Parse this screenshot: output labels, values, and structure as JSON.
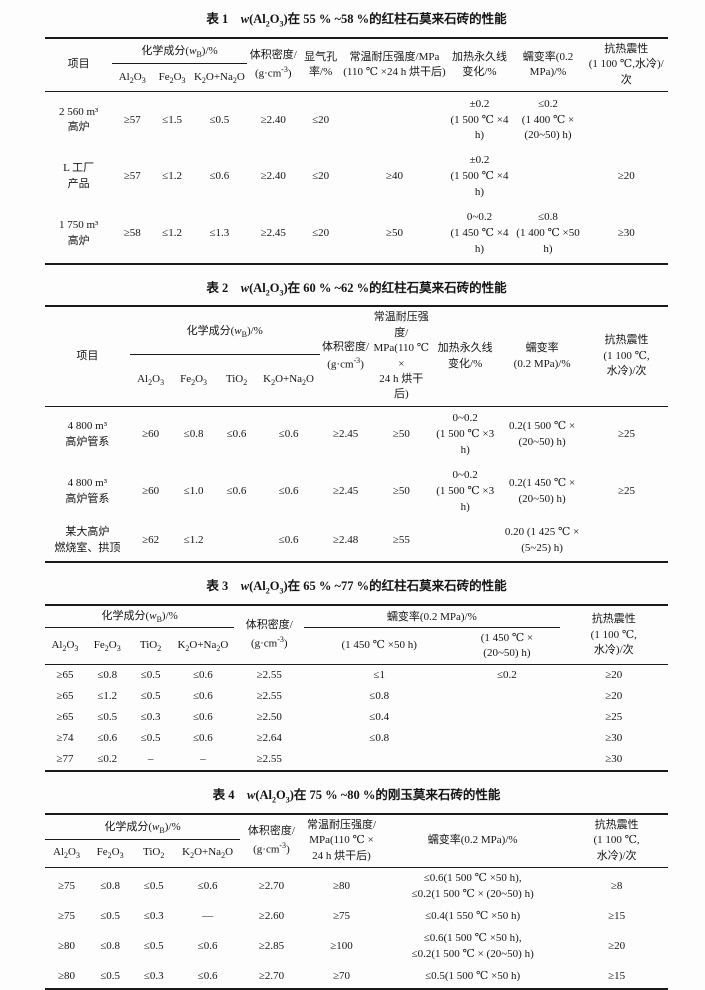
{
  "tables": {
    "t1": {
      "caption": "表 1　<i>w</i>(Al<sub>2</sub>O<sub>3</sub>)在 55 % ~58 %的红柱石莫来石砖的性能",
      "headers": {
        "item": "项目",
        "chem_group": "化学成分(<i>w</i><sub>B</sub>)/%",
        "al2o3": "Al<sub>2</sub>O<sub>3</sub>",
        "fe2o3": "Fe<sub>2</sub>O<sub>3</sub>",
        "k2o_na2o": "K<sub>2</sub>O+Na<sub>2</sub>O",
        "density": "体积密度/<br>(g·cm<sup>-3</sup>)",
        "porosity": "显气孔<br>率/%",
        "ccs": "常温耐压强度/MPa<br>(110 ℃ ×24 h 烘干后)",
        "plc": "加热永久线<br>变化/%",
        "creep": "蠕变率(0.2 MPa)/%",
        "tsr": "抗热震性<br>(1 100 ℃,水冷)/次"
      },
      "rows": [
        [
          "2 560 m³\n高炉",
          "≥57",
          "≤1.5",
          "≤0.5",
          "≥2.40",
          "≤20",
          "",
          "±0.2\n(1 500 ℃ ×4 h)",
          "≤0.2\n(1 400 ℃ ×\n(20~50) h)",
          ""
        ],
        [
          "L 工厂\n产品",
          "≥57",
          "≤1.2",
          "≤0.6",
          "≥2.40",
          "≤20",
          "≥40",
          "±0.2\n(1 500 ℃ ×4 h)",
          "",
          "≥20"
        ],
        [
          "1 750 m³\n高炉",
          "≥58",
          "≤1.2",
          "≤1.3",
          "≥2.45",
          "≤20",
          "≥50",
          "0~0.2\n(1 450 ℃ ×4 h)",
          "≤0.8\n(1 400 ℃ ×50 h)",
          "≥30"
        ]
      ]
    },
    "t2": {
      "caption": "表 2　<i>w</i>(Al<sub>2</sub>O<sub>3</sub>)在 60 % ~62 %的红柱石莫来石砖的性能",
      "headers": {
        "item": "项目",
        "chem_group": "化学成分(<i>w</i><sub>B</sub>)/%",
        "al2o3": "Al<sub>2</sub>O<sub>3</sub>",
        "fe2o3": "Fe<sub>2</sub>O<sub>3</sub>",
        "tio2": "TiO<sub>2</sub>",
        "k2o_na2o": "K<sub>2</sub>O+Na<sub>2</sub>O",
        "density": "体积密度/<br>(g·cm<sup>-3</sup>)",
        "ccs": "常温耐压强度/<br>MPa(110 ℃ ×<br>24 h 烘干后)",
        "plc": "加热永久线<br>变化/%",
        "creep": "蠕变率<br>(0.2 MPa)/%",
        "tsr": "抗热震性<br>(1 100 ℃,<br>水冷)/次"
      },
      "rows": [
        [
          "4 800 m³\n高炉管系",
          "≥60",
          "≤0.8",
          "≤0.6",
          "≤0.6",
          "≥2.45",
          "≥50",
          "0~0.2\n(1 500 ℃ ×3 h)",
          "0.2(1 500 ℃ ×\n(20~50) h)",
          "≥25"
        ],
        [
          "4 800 m³\n高炉管系",
          "≥60",
          "≤1.0",
          "≤0.6",
          "≤0.6",
          "≥2.45",
          "≥50",
          "0~0.2\n(1 500 ℃ ×3 h)",
          "0.2(1 450 ℃ ×\n(20~50) h)",
          "≥25"
        ],
        [
          "某大高炉\n燃烧室、拱顶",
          "≥62",
          "≤1.2",
          "",
          "≤0.6",
          "≥2.48",
          "≥55",
          "",
          "0.20 (1 425 ℃ ×\n(5~25) h)",
          ""
        ]
      ]
    },
    "t3": {
      "caption": "表 3　<i>w</i>(Al<sub>2</sub>O<sub>3</sub>)在 65 % ~77 %的红柱石莫来石砖的性能",
      "headers": {
        "chem_group": "化学成分(<i>w</i><sub>B</sub>)/%",
        "al2o3": "Al<sub>2</sub>O<sub>3</sub>",
        "fe2o3": "Fe<sub>2</sub>O<sub>3</sub>",
        "tio2": "TiO<sub>2</sub>",
        "k2o_na2o": "K<sub>2</sub>O+Na<sub>2</sub>O",
        "density": "体积密度/<br>(g·cm<sup>-3</sup>)",
        "creep_group": "蠕变率(0.2 MPa)/%",
        "creep1": "(1 450 ℃ ×50 h)",
        "creep2": "(1 450 ℃ ×<br>(20~50) h)",
        "tsr": "抗热震性<br>(1 100 ℃,<br>水冷)/次"
      },
      "rows": [
        [
          "≥65",
          "≤0.8",
          "≤0.5",
          "≤0.6",
          "≥2.55",
          "≤1",
          "≤0.2",
          "≥20"
        ],
        [
          "≥65",
          "≤1.2",
          "≤0.5",
          "≤0.6",
          "≥2.55",
          "≤0.8",
          "",
          "≥20"
        ],
        [
          "≥65",
          "≤0.5",
          "≤0.3",
          "≤0.6",
          "≥2.50",
          "≤0.4",
          "",
          "≥25"
        ],
        [
          "≥74",
          "≤0.6",
          "≤0.5",
          "≤0.6",
          "≥2.64",
          "≤0.8",
          "",
          "≥30"
        ],
        [
          "≥77",
          "≤0.2",
          "–",
          "–",
          "≥2.55",
          "",
          "",
          "≥30"
        ]
      ]
    },
    "t4": {
      "caption": "表 4　<i>w</i>(Al<sub>2</sub>O<sub>3</sub>)在 75 % ~80 %的刚玉莫来石砖的性能",
      "headers": {
        "chem_group": "化学成分(<i>w</i><sub>B</sub>)/%",
        "al2o3": "Al<sub>2</sub>O<sub>3</sub>",
        "fe2o3": "Fe<sub>2</sub>O<sub>3</sub>",
        "tio2": "TiO<sub>2</sub>",
        "k2o_na2o": "K<sub>2</sub>O+Na<sub>2</sub>O",
        "density": "体积密度/<br>(g·cm<sup>-3</sup>)",
        "ccs": "常温耐压强度/<br>MPa(110 ℃ ×<br>24 h 烘干后)",
        "creep": "蠕变率(0.2 MPa)/%",
        "tsr": "抗热震性<br>(1 100 ℃,<br>水冷)/次"
      },
      "rows": [
        [
          "≥75",
          "≤0.8",
          "≤0.5",
          "≤0.6",
          "≥2.70",
          "≥80",
          "≤0.6(1 500 ℃ ×50 h),\n≤0.2(1 500 ℃ × (20~50) h)",
          "≥8"
        ],
        [
          "≥75",
          "≤0.5",
          "≤0.3",
          "—",
          "≥2.60",
          "≥75",
          "≤0.4(1 550 ℃ ×50 h)",
          "≥15"
        ],
        [
          "≥80",
          "≤0.8",
          "≤0.5",
          "≤0.6",
          "≥2.85",
          "≥100",
          "≤0.6(1 500 ℃ ×50 h),\n≤0.2(1 500 ℃ × (20~50) h)",
          "≥20"
        ],
        [
          "≥80",
          "≤0.5",
          "≤0.3",
          "≤0.6",
          "≥2.70",
          "≥70",
          "≤0.5(1 500 ℃ ×50 h)",
          "≥15"
        ]
      ]
    }
  }
}
